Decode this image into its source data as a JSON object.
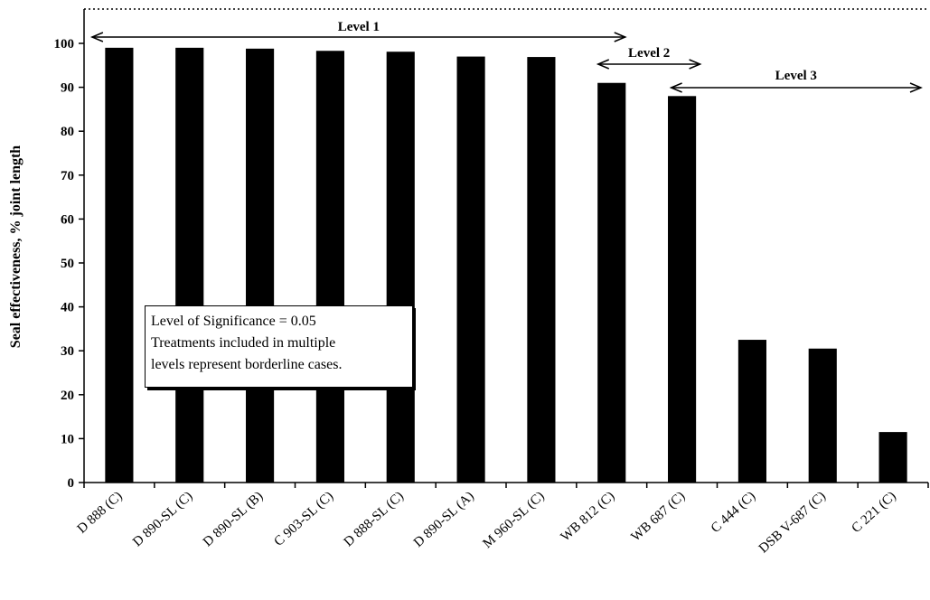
{
  "chart_data": {
    "type": "bar",
    "ylabel": "Seal effectiveness, % joint length",
    "xlabel": "",
    "ylim": [
      0,
      100
    ],
    "yticks": [
      0,
      10,
      20,
      30,
      40,
      50,
      60,
      70,
      80,
      90,
      100
    ],
    "categories": [
      "D 888 (C)",
      "D 890-SL (C)",
      "D 890-SL (B)",
      "C 903-SL (C)",
      "D 888-SL (C)",
      "D 890-SL (A)",
      "M 960-SL (C)",
      "WB 812 (C)",
      "WB 687 (C)",
      "C 444 (C)",
      "DSB V-687 (C)",
      "C 221 (C)"
    ],
    "values": [
      99,
      99,
      98.8,
      98.3,
      98.1,
      97,
      96.9,
      91,
      88,
      32.5,
      30.5,
      11.5
    ],
    "bar_color": "#000000",
    "levels": [
      {
        "label": "Level 1",
        "from_category": 0,
        "to_category": 7
      },
      {
        "label": "Level 2",
        "from_category": 7,
        "to_category": 8
      },
      {
        "label": "Level 3",
        "from_category": 8,
        "to_category": 11
      }
    ],
    "annotation": {
      "lines": [
        "Level of Significance = 0.05",
        "Treatments included in multiple",
        "levels represent borderline cases."
      ]
    }
  }
}
